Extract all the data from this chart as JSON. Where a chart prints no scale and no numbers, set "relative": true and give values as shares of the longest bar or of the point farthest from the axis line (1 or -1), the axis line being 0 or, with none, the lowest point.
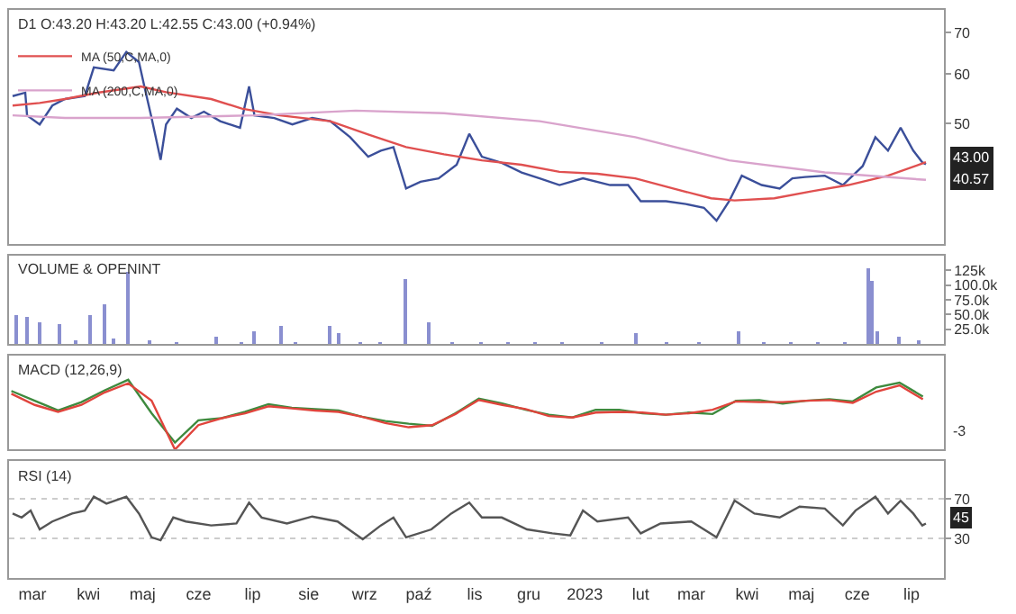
{
  "chart_data": [
    {
      "type": "line",
      "title": "D1 O:43.20 H:43.20 L:42.55 C:43.00 (+0.94%)",
      "log": true,
      "legend": "top left",
      "tick_labels": "y",
      "xlim": [
        "2022-02-16",
        "2023-07-19"
      ],
      "ylim": [
        32,
        76
      ],
      "yticks": [
        50,
        60,
        70
      ],
      "annotations": [
        "43.00",
        "40.57"
      ],
      "series": [
        {
          "color": "#3b4f9a",
          "x": [
            "2022-02-18",
            "2022-02-25",
            "2022-02-26",
            "2022-03-05",
            "2022-03-12",
            "2022-03-19",
            "2022-03-30",
            "2022-04-04",
            "2022-04-15",
            "2022-04-22",
            "2022-04-29",
            "2022-05-02",
            "2022-05-06",
            "2022-05-11",
            "2022-05-14",
            "2022-05-20",
            "2022-05-28",
            "2022-06-04",
            "2022-06-13",
            "2022-06-24",
            "2022-06-29",
            "2022-07-02",
            "2022-07-13",
            "2022-07-23",
            "2022-08-03",
            "2022-08-13",
            "2022-08-24",
            "2022-09-03",
            "2022-09-10",
            "2022-09-17",
            "2022-09-24",
            "2022-10-02",
            "2022-10-12",
            "2022-10-22",
            "2022-10-29",
            "2022-11-05",
            "2022-11-16",
            "2022-11-27",
            "2022-12-07",
            "2022-12-18",
            "2022-12-31",
            "2023-01-15",
            "2023-01-25",
            "2023-02-01",
            "2023-02-15",
            "2023-02-26",
            "2023-03-08",
            "2023-03-15",
            "2023-03-22",
            "2023-03-29",
            "2023-04-09",
            "2023-04-19",
            "2023-04-26",
            "2023-05-03",
            "2023-05-14",
            "2023-05-24",
            "2023-06-04",
            "2023-06-11",
            "2023-06-18",
            "2023-06-25",
            "2023-07-02",
            "2023-07-07",
            "2023-07-09"
          ],
          "values": [
            55.3,
            56.0,
            51.5,
            49.8,
            53.4,
            54.7,
            55.3,
            61.5,
            60.8,
            65.1,
            62.7,
            57.3,
            51.0,
            43.7,
            49.8,
            52.8,
            51.0,
            52.2,
            50.4,
            49.2,
            57.3,
            51.5,
            51.0,
            49.8,
            51.0,
            50.4,
            47.5,
            44.2,
            45.2,
            45.8,
            39.3,
            40.3,
            40.8,
            42.9,
            48.1,
            44.2,
            43.2,
            41.7,
            40.8,
            39.8,
            40.8,
            39.8,
            39.8,
            37.5,
            37.5,
            37.1,
            36.6,
            34.9,
            37.5,
            41.2,
            39.8,
            39.3,
            40.8,
            41.0,
            41.2,
            39.8,
            42.7,
            47.5,
            45.2,
            49.2,
            45.2,
            43.3,
            43.0
          ]
        },
        {
          "name": "MA (50,C,MA,0)",
          "color": "#e05050",
          "x": [
            "2022-02-18",
            "2022-03-05",
            "2022-03-19",
            "2022-04-06",
            "2022-04-30",
            "2022-05-14",
            "2022-06-08",
            "2022-06-25",
            "2022-07-16",
            "2022-08-13",
            "2022-09-03",
            "2022-09-24",
            "2022-10-15",
            "2022-11-05",
            "2022-11-27",
            "2022-12-18",
            "2023-01-08",
            "2023-01-29",
            "2023-02-19",
            "2023-03-12",
            "2023-03-25",
            "2023-04-16",
            "2023-05-07",
            "2023-05-27",
            "2023-06-18",
            "2023-07-09"
          ],
          "values": [
            53.4,
            53.9,
            54.7,
            56.0,
            57.3,
            56.1,
            54.7,
            52.8,
            51.5,
            50.4,
            48.0,
            45.8,
            44.6,
            43.6,
            42.9,
            41.8,
            41.5,
            40.8,
            39.3,
            37.9,
            37.6,
            37.9,
            38.9,
            39.8,
            41.2,
            43.3
          ]
        },
        {
          "name": "MA (200,C,MA,0)",
          "color": "#d9a3cc",
          "x": [
            "2022-02-18",
            "2022-03-19",
            "2022-04-30",
            "2022-07-02",
            "2022-08-27",
            "2022-10-15",
            "2022-12-07",
            "2023-01-29",
            "2023-03-22",
            "2023-05-14",
            "2023-07-09"
          ],
          "values": [
            51.5,
            51.0,
            51.0,
            51.5,
            52.4,
            51.9,
            50.4,
            47.5,
            43.6,
            41.7,
            40.57
          ]
        }
      ]
    },
    {
      "type": "bar",
      "title": "VOLUME & OPENINT",
      "tick_labels": "y",
      "color": "#8a8fd0",
      "xlim": [
        "2022-02-16",
        "2023-07-19"
      ],
      "ylim": [
        0,
        150000
      ],
      "yticks": [
        {
          "value": 125000,
          "label": "125k"
        },
        {
          "value": 100000,
          "label": "100.0k"
        },
        {
          "value": 75000,
          "label": "75.0k"
        },
        {
          "value": 50000,
          "label": "50.0k"
        },
        {
          "value": 25000,
          "label": "25.0k"
        }
      ],
      "x": [
        "2022-02-20",
        "2022-02-26",
        "2022-03-05",
        "2022-03-16",
        "2022-03-25",
        "2022-04-02",
        "2022-04-10",
        "2022-04-15",
        "2022-04-23",
        "2022-05-05",
        "2022-05-20",
        "2022-06-11",
        "2022-06-25",
        "2022-07-02",
        "2022-07-17",
        "2022-07-25",
        "2022-08-13",
        "2022-08-18",
        "2022-08-30",
        "2022-09-10",
        "2022-09-24",
        "2022-10-07",
        "2022-10-20",
        "2022-11-05",
        "2022-11-20",
        "2022-12-05",
        "2022-12-20",
        "2023-01-10",
        "2023-01-29",
        "2023-02-15",
        "2023-03-05",
        "2023-03-27",
        "2023-04-10",
        "2023-04-25",
        "2023-05-10",
        "2023-05-25",
        "2023-06-07",
        "2023-06-09",
        "2023-06-12",
        "2023-06-24",
        "2023-07-05"
      ],
      "values": [
        48000,
        46000,
        38000,
        33000,
        8000,
        48000,
        68000,
        10000,
        123000,
        6000,
        5000,
        13000,
        4000,
        23000,
        30000,
        4000,
        30000,
        20000,
        5000,
        4000,
        111000,
        38000,
        4000,
        5000,
        4000,
        4000,
        4000,
        4000,
        18000,
        4000,
        4000,
        23000,
        5000,
        4000,
        4000,
        5000,
        128000,
        108000,
        23000,
        13000,
        6000
      ]
    },
    {
      "type": "line",
      "title": "MACD (12,26,9)",
      "relative": true,
      "tick_labels": false,
      "annotations": [
        "-3"
      ],
      "categories": [
        null,
        null,
        null,
        null,
        null,
        null,
        null,
        null,
        null,
        null,
        null,
        null,
        null,
        null,
        null,
        null,
        null,
        null,
        null,
        null,
        null,
        null,
        null,
        null,
        null,
        null,
        null,
        null,
        null,
        null,
        null,
        null,
        null,
        null,
        null,
        null,
        null,
        null,
        null,
        null
      ],
      "series": [
        {
          "color": "#3e8a3e",
          "values": [
            0.84,
            0.7,
            0.56,
            0.68,
            0.85,
            1.0,
            0.52,
            0.1,
            0.42,
            0.45,
            0.54,
            0.65,
            0.6,
            0.58,
            0.56,
            0.47,
            0.41,
            0.37,
            0.34,
            0.52,
            0.73,
            0.66,
            0.57,
            0.5,
            0.46,
            0.57,
            0.57,
            0.52,
            0.5,
            0.53,
            0.51,
            0.7,
            0.71,
            0.66,
            0.7,
            0.72,
            0.69,
            0.89,
            0.96,
            0.76
          ]
        },
        {
          "color": "#e0443c",
          "values": [
            0.8,
            0.64,
            0.54,
            0.64,
            0.82,
            0.95,
            0.7,
            0.0,
            0.35,
            0.45,
            0.52,
            0.62,
            0.59,
            0.56,
            0.54,
            0.47,
            0.38,
            0.32,
            0.35,
            0.51,
            0.71,
            0.64,
            0.58,
            0.48,
            0.46,
            0.53,
            0.54,
            0.53,
            0.5,
            0.52,
            0.57,
            0.69,
            0.68,
            0.68,
            0.7,
            0.71,
            0.67,
            0.83,
            0.92,
            0.72
          ]
        }
      ]
    },
    {
      "type": "line",
      "title": "RSI (14)",
      "color": "#555555",
      "xlim": [
        "2022-02-16",
        "2023-07-19"
      ],
      "ylim": [
        -10,
        108
      ],
      "yticks": [
        30,
        70
      ],
      "xticks": [
        {
          "value": "2022-03-01",
          "label": "mar"
        },
        {
          "value": "2022-04-01",
          "label": "kwi"
        },
        {
          "value": "2022-05-01",
          "label": "maj"
        },
        {
          "value": "2022-06-01",
          "label": "cze"
        },
        {
          "value": "2022-07-01",
          "label": "lip"
        },
        {
          "value": "2022-08-01",
          "label": "sie"
        },
        {
          "value": "2022-09-01",
          "label": "wrz"
        },
        {
          "value": "2022-10-01",
          "label": "paź"
        },
        {
          "value": "2022-11-01",
          "label": "lis"
        },
        {
          "value": "2022-12-01",
          "label": "gru"
        },
        {
          "value": "2023-01-01",
          "label": "2023"
        },
        {
          "value": "2023-02-01",
          "label": "lut"
        },
        {
          "value": "2023-03-01",
          "label": "mar"
        },
        {
          "value": "2023-04-01",
          "label": "kwi"
        },
        {
          "value": "2023-05-01",
          "label": "maj"
        },
        {
          "value": "2023-06-01",
          "label": "cze"
        },
        {
          "value": "2023-07-01",
          "label": "lip"
        }
      ],
      "ref_lines": [
        {
          "axis": "y",
          "value": 70,
          "color": "#cccccc",
          "line_style": "dotted"
        },
        {
          "axis": "y",
          "value": 30,
          "color": "#cccccc",
          "line_style": "dotted"
        }
      ],
      "annotations": [
        "45"
      ],
      "x": [
        "2022-02-18",
        "2022-02-23",
        "2022-02-28",
        "2022-03-05",
        "2022-03-12",
        "2022-03-23",
        "2022-03-30",
        "2022-04-04",
        "2022-04-11",
        "2022-04-22",
        "2022-04-29",
        "2022-05-06",
        "2022-05-11",
        "2022-05-18",
        "2022-05-25",
        "2022-06-08",
        "2022-06-22",
        "2022-06-29",
        "2022-07-06",
        "2022-07-20",
        "2022-08-03",
        "2022-08-17",
        "2022-08-31",
        "2022-09-10",
        "2022-09-17",
        "2022-09-24",
        "2022-10-08",
        "2022-10-19",
        "2022-10-29",
        "2022-11-05",
        "2022-11-16",
        "2022-11-30",
        "2022-12-14",
        "2022-12-24",
        "2022-12-31",
        "2023-01-08",
        "2023-01-25",
        "2023-02-01",
        "2023-02-12",
        "2023-03-01",
        "2023-03-15",
        "2023-03-25",
        "2023-04-05",
        "2023-04-19",
        "2023-04-30",
        "2023-05-14",
        "2023-05-24",
        "2023-05-31",
        "2023-06-11",
        "2023-06-18",
        "2023-06-25",
        "2023-07-02",
        "2023-07-07",
        "2023-07-09"
      ],
      "values": [
        55,
        51,
        58,
        39,
        47,
        55,
        58,
        72,
        65,
        72,
        55,
        31,
        28,
        51,
        47,
        43,
        45,
        66,
        51,
        45,
        52,
        47,
        29,
        43,
        51,
        31,
        39,
        55,
        66,
        51,
        51,
        39,
        35,
        33,
        58,
        47,
        51,
        35,
        45,
        47,
        31,
        68,
        55,
        51,
        62,
        60,
        43,
        58,
        72,
        55,
        68,
        55,
        43,
        45
      ]
    }
  ]
}
